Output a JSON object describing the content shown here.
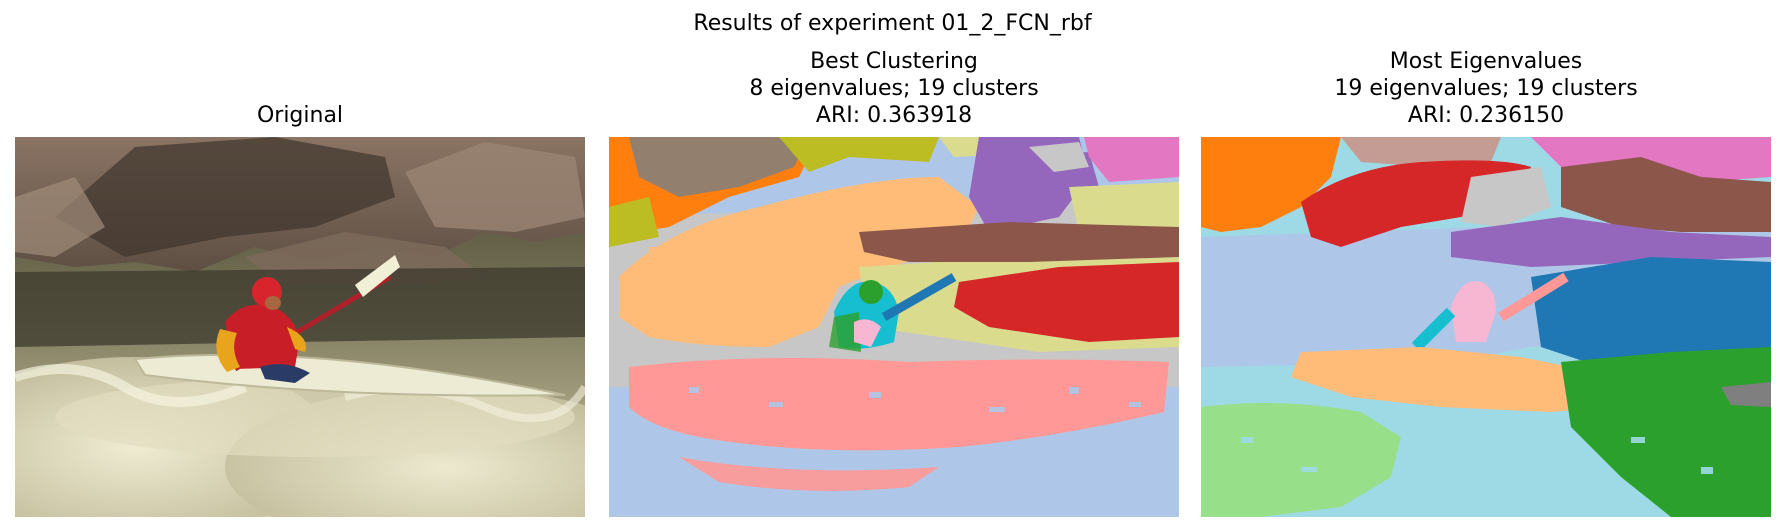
{
  "figure": {
    "suptitle": "Results of experiment 01_2_FCN_rbf"
  },
  "panels": [
    {
      "lines": [
        "Original"
      ]
    },
    {
      "lines": [
        "Best Clustering",
        "8 eigenvalues; 19 clusters",
        "ARI: 0.363918"
      ]
    },
    {
      "lines": [
        "Most Eigenvalues",
        "19 eigenvalues; 19 clusters",
        "ARI: 0.236150"
      ]
    }
  ],
  "colors": {
    "blue": "#1f77b4",
    "light_blue": "#aec7e8",
    "orange": "#ff7f0e",
    "light_orange": "#ffbb78",
    "green": "#2ca02c",
    "light_green": "#98df8a",
    "red": "#d62728",
    "pink": "#ff9896",
    "purple": "#9467bd",
    "brown": "#8c564b",
    "tan": "#c49c94",
    "magenta": "#e377c2",
    "light_magenta": "#f7b6d2",
    "gray": "#7f7f7f",
    "light_gray": "#c7c7c7",
    "olive": "#bcbd22",
    "khaki": "#dbdb8d",
    "cyan": "#17becf",
    "light_cyan": "#9edae5"
  }
}
